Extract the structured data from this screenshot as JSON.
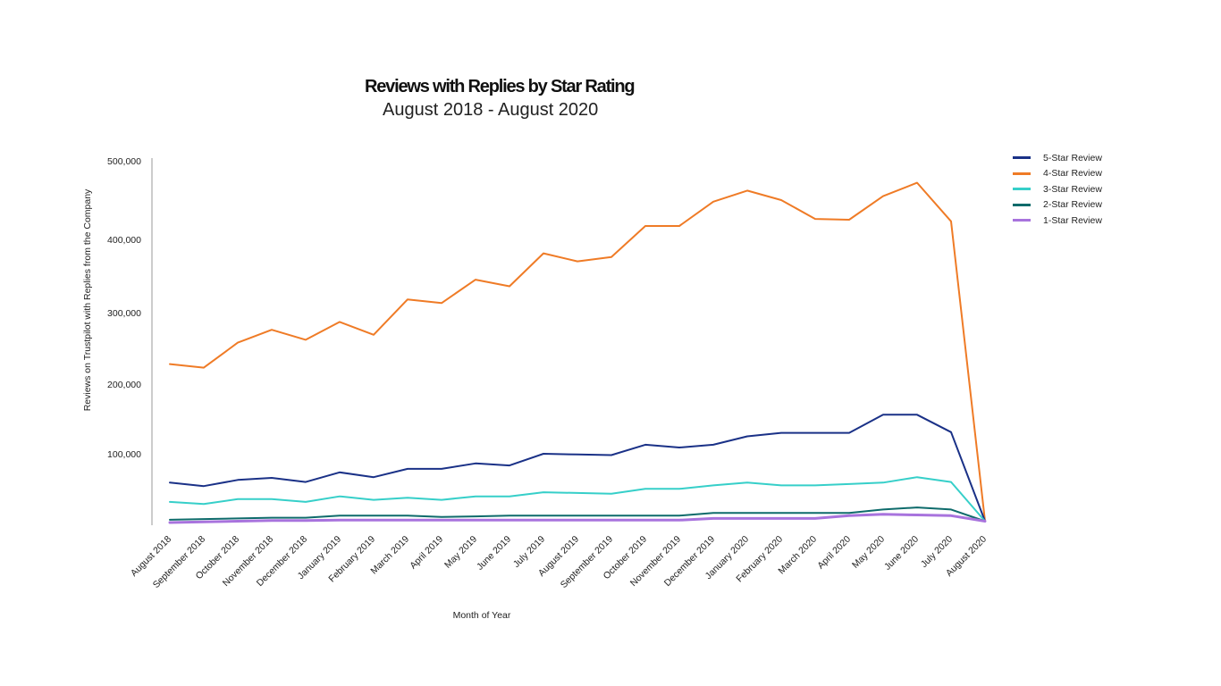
{
  "chart_data": {
    "type": "line",
    "title": "Reviews with Replies by Star Rating",
    "subtitle": "August 2018 - August 2020",
    "xlabel": "Month of Year",
    "ylabel": "Reviews on Trustpilot with Replies from the Company",
    "ylim": [
      0,
      500000
    ],
    "y_ticks": [
      {
        "value": 100000,
        "label": "100,000"
      },
      {
        "value": 200000,
        "label": "200,000"
      },
      {
        "value": 300000,
        "label": "300,000"
      },
      {
        "value": 400000,
        "label": "400,000"
      },
      {
        "value": 500000,
        "label": "500,000"
      }
    ],
    "categories": [
      "August 2018",
      "September 2018",
      "October 2018",
      "November 2018",
      "December 2018",
      "January 2019",
      "February 2019",
      "March 2019",
      "April 2019",
      "May 2019",
      "June 2019",
      "July 2019",
      "August 2019",
      "September 2019",
      "October 2019",
      "November 2019",
      "December 2019",
      "January 2020",
      "February 2020",
      "March 2020",
      "April 2020",
      "May 2020",
      "June 2020",
      "July 2020",
      "August 2020"
    ],
    "legend_position": "top-right",
    "series": [
      {
        "name": "5-Star Review",
        "color": "#1a3187",
        "values": [
          58000,
          53000,
          62000,
          65000,
          59000,
          73000,
          66000,
          78000,
          78000,
          86000,
          83000,
          100000,
          99000,
          98000,
          113000,
          109000,
          113000,
          125000,
          130000,
          130000,
          130000,
          156000,
          156000,
          131000,
          2000
        ]
      },
      {
        "name": "4-Star Review",
        "color": "#ef7b26",
        "values": [
          228000,
          223000,
          258000,
          276000,
          262000,
          287000,
          269000,
          318000,
          313000,
          345000,
          336000,
          381000,
          370000,
          376000,
          417000,
          417000,
          448000,
          462000,
          450000,
          426000,
          425000,
          455000,
          472000,
          423000,
          2000
        ]
      },
      {
        "name": "3-Star Review",
        "color": "#36cfc9",
        "values": [
          30000,
          27000,
          34000,
          34000,
          30000,
          38000,
          33000,
          36000,
          33000,
          38000,
          38000,
          44000,
          43000,
          42000,
          49000,
          49000,
          54000,
          58000,
          54000,
          54000,
          56000,
          58000,
          66000,
          59000,
          2000
        ]
      },
      {
        "name": "2-Star Review",
        "color": "#0e6b6b",
        "values": [
          4000,
          5000,
          6000,
          7000,
          7000,
          10000,
          10000,
          10000,
          8000,
          9000,
          10000,
          10000,
          10000,
          10000,
          10000,
          10000,
          14000,
          14000,
          14000,
          14000,
          14000,
          19000,
          22000,
          19000,
          2000
        ]
      },
      {
        "name": "1-Star Review",
        "color": "#a873dd",
        "values": [
          0,
          1000,
          2000,
          3000,
          3000,
          3500,
          3500,
          3500,
          3500,
          3500,
          3500,
          3500,
          3500,
          3500,
          3500,
          3500,
          6000,
          6000,
          6000,
          6000,
          10000,
          12000,
          11000,
          10000,
          2000
        ]
      }
    ]
  }
}
